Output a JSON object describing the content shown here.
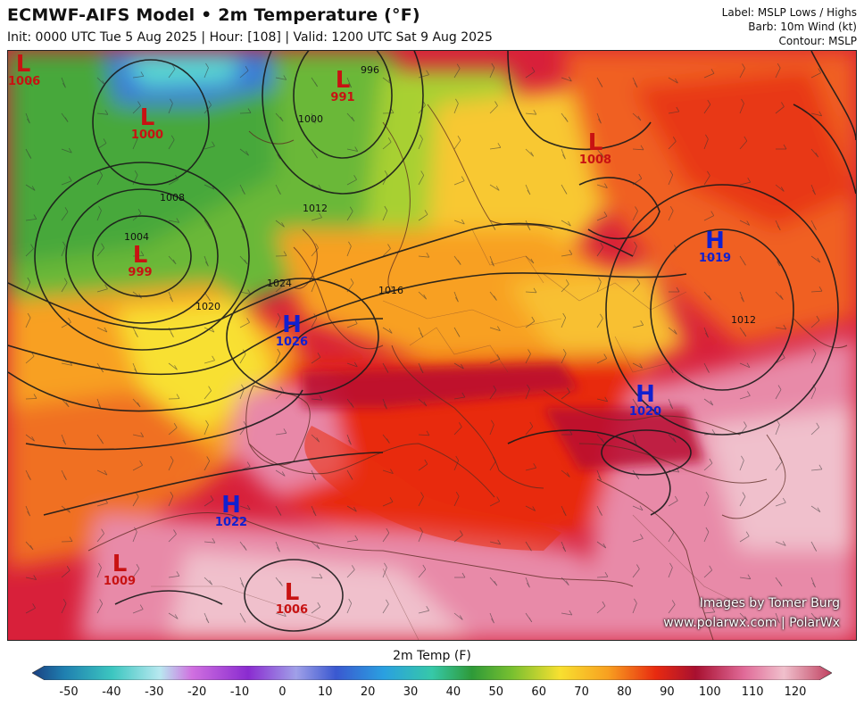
{
  "header": {
    "title": "ECMWF-AIFS Model • 2m Temperature (°F)",
    "subtitle": "Init: 0000 UTC Tue 5 Aug 2025 | Hour: [108] | Valid: 1200 UTC Sat 9 Aug 2025"
  },
  "legend_info": {
    "line1": "Label: MSLP Lows / Highs",
    "line2": "Barb: 10m Wind (kt)",
    "line3": "Contour: MSLP"
  },
  "systems": [
    {
      "type": "L",
      "pressure": "1006"
    },
    {
      "type": "L",
      "pressure": "991"
    },
    {
      "type": "L",
      "pressure": "1000"
    },
    {
      "type": "L",
      "pressure": "1008"
    },
    {
      "type": "H",
      "pressure": "1019"
    },
    {
      "type": "L",
      "pressure": "999"
    },
    {
      "type": "H",
      "pressure": "1026"
    },
    {
      "type": "H",
      "pressure": "1020"
    },
    {
      "type": "H",
      "pressure": "1022"
    },
    {
      "type": "L",
      "pressure": "1009"
    },
    {
      "type": "L",
      "pressure": "1006"
    }
  ],
  "contour_labels": [
    "1004",
    "1008",
    "1012",
    "1016",
    "1020",
    "1024",
    "996",
    "1000",
    "1012"
  ],
  "credits": {
    "line1": "Images by Tomer Burg",
    "line2": "www.polarwx.com | PolarWx"
  },
  "colorbar": {
    "title": "2m Temp (F)",
    "ticks": [
      "-50",
      "-40",
      "-30",
      "-20",
      "-10",
      "0",
      "10",
      "20",
      "30",
      "40",
      "50",
      "60",
      "70",
      "80",
      "90",
      "100",
      "110",
      "120"
    ],
    "colors": [
      "#1a4f8c",
      "#1f8fb0",
      "#3cc6c0",
      "#c070d8",
      "#8a2bd0",
      "#9a8ad8",
      "#3a6ad8",
      "#2aa0e0",
      "#36c8a8",
      "#2e9a38",
      "#a8d030",
      "#f8e030",
      "#f8a020",
      "#e82a10",
      "#b81040",
      "#e06a98",
      "#f0b8c8",
      "#c04060"
    ]
  }
}
